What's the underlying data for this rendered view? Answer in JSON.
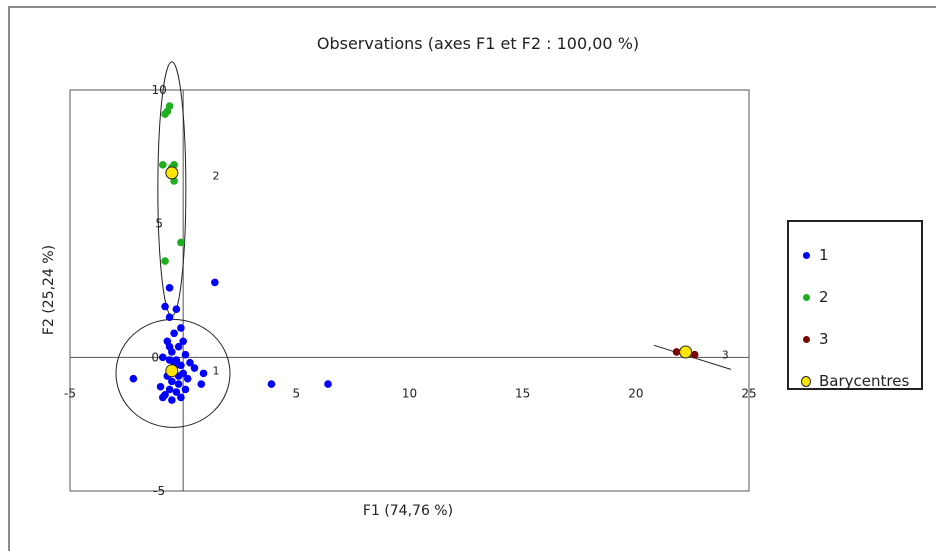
{
  "chart_data": {
    "type": "scatter",
    "title": "Observations (axes F1 et F2 : 100,00 %)",
    "xlabel": "F1 (74,76 %)",
    "ylabel": "F2 (25,24 %)",
    "xlim": [
      -5,
      25
    ],
    "ylim": [
      -5,
      10
    ],
    "x_ticks": [
      "-5",
      "5",
      "10",
      "15",
      "20",
      "25"
    ],
    "y_ticks": [
      "-5",
      "5",
      "10"
    ],
    "origin_tick": "0",
    "legend_position": "right",
    "cluster_labels": [
      {
        "text": "2",
        "x": 0.5,
        "y": 6.8
      },
      {
        "text": "1",
        "x": 0.5,
        "y": -0.5
      },
      {
        "text": "3",
        "x": 23.0,
        "y": 0.1
      }
    ],
    "series": [
      {
        "name": "1",
        "color": "#0000ff",
        "points": [
          [
            -0.6,
            2.6
          ],
          [
            -0.8,
            1.9
          ],
          [
            -0.3,
            1.8
          ],
          [
            -0.6,
            1.5
          ],
          [
            -0.1,
            1.1
          ],
          [
            1.4,
            2.8
          ],
          [
            -0.4,
            0.9
          ],
          [
            -0.7,
            0.6
          ],
          [
            -0.2,
            0.4
          ],
          [
            -0.5,
            0.2
          ],
          [
            -0.9,
            0.0
          ],
          [
            -0.3,
            -0.1
          ],
          [
            0.1,
            0.1
          ],
          [
            0.3,
            -0.2
          ],
          [
            0.5,
            -0.4
          ],
          [
            0.0,
            -0.6
          ],
          [
            -0.4,
            -0.4
          ],
          [
            -0.7,
            -0.7
          ],
          [
            -0.5,
            -0.9
          ],
          [
            -0.2,
            -1.0
          ],
          [
            -0.6,
            -1.2
          ],
          [
            -0.3,
            -1.3
          ],
          [
            -0.8,
            -1.4
          ],
          [
            -1.0,
            -1.1
          ],
          [
            -2.2,
            -0.8
          ],
          [
            0.9,
            -0.6
          ],
          [
            0.8,
            -1.0
          ],
          [
            0.2,
            -0.8
          ],
          [
            0.1,
            -1.2
          ],
          [
            -0.1,
            -1.5
          ],
          [
            -0.5,
            -1.6
          ],
          [
            -0.9,
            -1.5
          ],
          [
            0.0,
            0.6
          ],
          [
            -0.6,
            0.4
          ],
          [
            3.9,
            -1.0
          ],
          [
            6.4,
            -1.0
          ],
          [
            -0.4,
            -0.2
          ],
          [
            -0.1,
            -0.3
          ],
          [
            -0.6,
            -0.1
          ],
          [
            -0.2,
            -0.7
          ]
        ]
      },
      {
        "name": "2",
        "color": "#1fae1f",
        "points": [
          [
            -0.6,
            9.4
          ],
          [
            -0.7,
            9.2
          ],
          [
            -0.8,
            9.1
          ],
          [
            -0.9,
            7.2
          ],
          [
            -0.5,
            7.1
          ],
          [
            -0.4,
            7.2
          ],
          [
            -0.4,
            6.6
          ],
          [
            -0.1,
            4.3
          ],
          [
            -0.8,
            3.6
          ]
        ]
      },
      {
        "name": "3",
        "color": "#7a0000",
        "points": [
          [
            21.8,
            0.2
          ],
          [
            22.6,
            0.1
          ]
        ]
      },
      {
        "name": "Barycentres",
        "color": "#ffe600",
        "points": [
          [
            -0.5,
            6.9
          ],
          [
            -0.5,
            -0.5
          ],
          [
            22.2,
            0.2
          ]
        ]
      }
    ]
  }
}
